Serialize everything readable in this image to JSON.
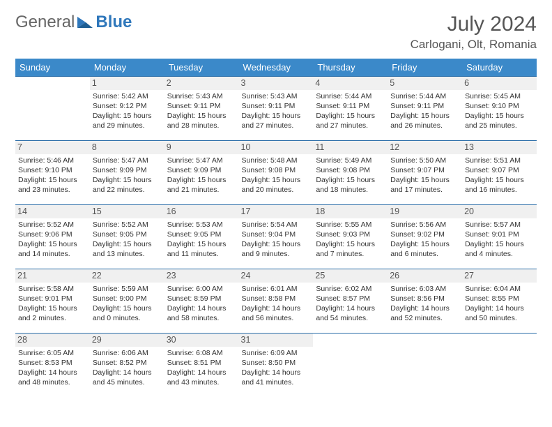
{
  "brand": {
    "text1": "General",
    "text2": "Blue",
    "icon_color": "#2f77bb"
  },
  "title": "July 2024",
  "subtitle": "Carlogani, Olt, Romania",
  "header_bg": "#3b89c9",
  "header_fg": "#ffffff",
  "row_border": "#2a6da8",
  "daynum_bg": "#f0f0f0",
  "weekdays": [
    "Sunday",
    "Monday",
    "Tuesday",
    "Wednesday",
    "Thursday",
    "Friday",
    "Saturday"
  ],
  "weeks": [
    [
      {
        "day": "",
        "sunrise": "",
        "sunset": "",
        "daylight": ""
      },
      {
        "day": "1",
        "sunrise": "Sunrise: 5:42 AM",
        "sunset": "Sunset: 9:12 PM",
        "daylight": "Daylight: 15 hours and 29 minutes."
      },
      {
        "day": "2",
        "sunrise": "Sunrise: 5:43 AM",
        "sunset": "Sunset: 9:11 PM",
        "daylight": "Daylight: 15 hours and 28 minutes."
      },
      {
        "day": "3",
        "sunrise": "Sunrise: 5:43 AM",
        "sunset": "Sunset: 9:11 PM",
        "daylight": "Daylight: 15 hours and 27 minutes."
      },
      {
        "day": "4",
        "sunrise": "Sunrise: 5:44 AM",
        "sunset": "Sunset: 9:11 PM",
        "daylight": "Daylight: 15 hours and 27 minutes."
      },
      {
        "day": "5",
        "sunrise": "Sunrise: 5:44 AM",
        "sunset": "Sunset: 9:11 PM",
        "daylight": "Daylight: 15 hours and 26 minutes."
      },
      {
        "day": "6",
        "sunrise": "Sunrise: 5:45 AM",
        "sunset": "Sunset: 9:10 PM",
        "daylight": "Daylight: 15 hours and 25 minutes."
      }
    ],
    [
      {
        "day": "7",
        "sunrise": "Sunrise: 5:46 AM",
        "sunset": "Sunset: 9:10 PM",
        "daylight": "Daylight: 15 hours and 23 minutes."
      },
      {
        "day": "8",
        "sunrise": "Sunrise: 5:47 AM",
        "sunset": "Sunset: 9:09 PM",
        "daylight": "Daylight: 15 hours and 22 minutes."
      },
      {
        "day": "9",
        "sunrise": "Sunrise: 5:47 AM",
        "sunset": "Sunset: 9:09 PM",
        "daylight": "Daylight: 15 hours and 21 minutes."
      },
      {
        "day": "10",
        "sunrise": "Sunrise: 5:48 AM",
        "sunset": "Sunset: 9:08 PM",
        "daylight": "Daylight: 15 hours and 20 minutes."
      },
      {
        "day": "11",
        "sunrise": "Sunrise: 5:49 AM",
        "sunset": "Sunset: 9:08 PM",
        "daylight": "Daylight: 15 hours and 18 minutes."
      },
      {
        "day": "12",
        "sunrise": "Sunrise: 5:50 AM",
        "sunset": "Sunset: 9:07 PM",
        "daylight": "Daylight: 15 hours and 17 minutes."
      },
      {
        "day": "13",
        "sunrise": "Sunrise: 5:51 AM",
        "sunset": "Sunset: 9:07 PM",
        "daylight": "Daylight: 15 hours and 16 minutes."
      }
    ],
    [
      {
        "day": "14",
        "sunrise": "Sunrise: 5:52 AM",
        "sunset": "Sunset: 9:06 PM",
        "daylight": "Daylight: 15 hours and 14 minutes."
      },
      {
        "day": "15",
        "sunrise": "Sunrise: 5:52 AM",
        "sunset": "Sunset: 9:05 PM",
        "daylight": "Daylight: 15 hours and 13 minutes."
      },
      {
        "day": "16",
        "sunrise": "Sunrise: 5:53 AM",
        "sunset": "Sunset: 9:05 PM",
        "daylight": "Daylight: 15 hours and 11 minutes."
      },
      {
        "day": "17",
        "sunrise": "Sunrise: 5:54 AM",
        "sunset": "Sunset: 9:04 PM",
        "daylight": "Daylight: 15 hours and 9 minutes."
      },
      {
        "day": "18",
        "sunrise": "Sunrise: 5:55 AM",
        "sunset": "Sunset: 9:03 PM",
        "daylight": "Daylight: 15 hours and 7 minutes."
      },
      {
        "day": "19",
        "sunrise": "Sunrise: 5:56 AM",
        "sunset": "Sunset: 9:02 PM",
        "daylight": "Daylight: 15 hours and 6 minutes."
      },
      {
        "day": "20",
        "sunrise": "Sunrise: 5:57 AM",
        "sunset": "Sunset: 9:01 PM",
        "daylight": "Daylight: 15 hours and 4 minutes."
      }
    ],
    [
      {
        "day": "21",
        "sunrise": "Sunrise: 5:58 AM",
        "sunset": "Sunset: 9:01 PM",
        "daylight": "Daylight: 15 hours and 2 minutes."
      },
      {
        "day": "22",
        "sunrise": "Sunrise: 5:59 AM",
        "sunset": "Sunset: 9:00 PM",
        "daylight": "Daylight: 15 hours and 0 minutes."
      },
      {
        "day": "23",
        "sunrise": "Sunrise: 6:00 AM",
        "sunset": "Sunset: 8:59 PM",
        "daylight": "Daylight: 14 hours and 58 minutes."
      },
      {
        "day": "24",
        "sunrise": "Sunrise: 6:01 AM",
        "sunset": "Sunset: 8:58 PM",
        "daylight": "Daylight: 14 hours and 56 minutes."
      },
      {
        "day": "25",
        "sunrise": "Sunrise: 6:02 AM",
        "sunset": "Sunset: 8:57 PM",
        "daylight": "Daylight: 14 hours and 54 minutes."
      },
      {
        "day": "26",
        "sunrise": "Sunrise: 6:03 AM",
        "sunset": "Sunset: 8:56 PM",
        "daylight": "Daylight: 14 hours and 52 minutes."
      },
      {
        "day": "27",
        "sunrise": "Sunrise: 6:04 AM",
        "sunset": "Sunset: 8:55 PM",
        "daylight": "Daylight: 14 hours and 50 minutes."
      }
    ],
    [
      {
        "day": "28",
        "sunrise": "Sunrise: 6:05 AM",
        "sunset": "Sunset: 8:53 PM",
        "daylight": "Daylight: 14 hours and 48 minutes."
      },
      {
        "day": "29",
        "sunrise": "Sunrise: 6:06 AM",
        "sunset": "Sunset: 8:52 PM",
        "daylight": "Daylight: 14 hours and 45 minutes."
      },
      {
        "day": "30",
        "sunrise": "Sunrise: 6:08 AM",
        "sunset": "Sunset: 8:51 PM",
        "daylight": "Daylight: 14 hours and 43 minutes."
      },
      {
        "day": "31",
        "sunrise": "Sunrise: 6:09 AM",
        "sunset": "Sunset: 8:50 PM",
        "daylight": "Daylight: 14 hours and 41 minutes."
      },
      {
        "day": "",
        "sunrise": "",
        "sunset": "",
        "daylight": ""
      },
      {
        "day": "",
        "sunrise": "",
        "sunset": "",
        "daylight": ""
      },
      {
        "day": "",
        "sunrise": "",
        "sunset": "",
        "daylight": ""
      }
    ]
  ]
}
